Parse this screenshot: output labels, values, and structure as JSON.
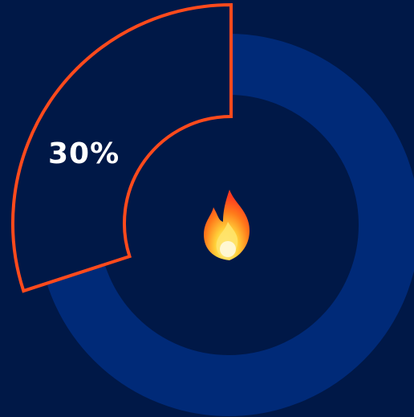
{
  "progress": {
    "label": "30%",
    "value_percent": 30
  },
  "icon": {
    "center": "fire-icon"
  },
  "colors": {
    "background": "#001847",
    "ring_track": "#002A78",
    "highlight_outline": "#FF4A1C",
    "text": "#FFFFFF"
  }
}
